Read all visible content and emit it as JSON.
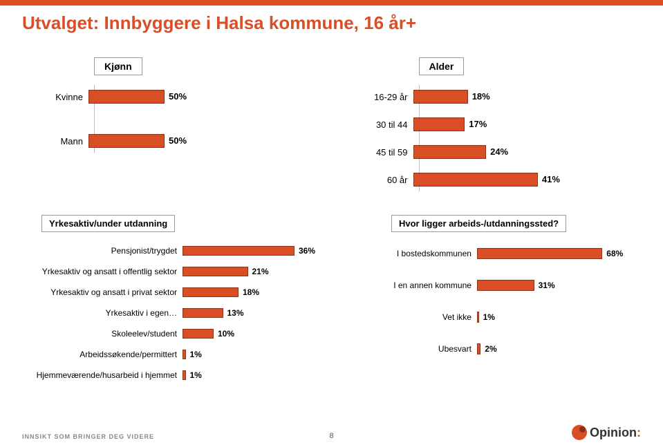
{
  "title": "Utvalget: Innbyggere i Halsa kommune, 16 år+",
  "colors": {
    "brand": "#da4e26",
    "bar_border": "#8f3218",
    "text": "#222222",
    "grid": "#bbbbbb",
    "bg": "#ffffff"
  },
  "kjonn": {
    "label": "Kjønn",
    "max": 100,
    "rows": [
      {
        "label": "Kvinne",
        "value": 50,
        "display": "50%"
      },
      {
        "label": "Mann",
        "value": 50,
        "display": "50%"
      }
    ]
  },
  "alder": {
    "label": "Alder",
    "max": 50,
    "rows": [
      {
        "label": "16-29 år",
        "value": 18,
        "display": "18%"
      },
      {
        "label": "30 til 44",
        "value": 17,
        "display": "17%"
      },
      {
        "label": "45 til 59",
        "value": 24,
        "display": "24%"
      },
      {
        "label": "60 år",
        "value": 41,
        "display": "41%"
      }
    ]
  },
  "yrke": {
    "label": "Yrkesaktiv/under utdanning",
    "max": 40,
    "rows": [
      {
        "label": "Pensjonist/trygdet",
        "value": 36,
        "display": "36%"
      },
      {
        "label": "Yrkesaktiv og ansatt i offentlig sektor",
        "value": 21,
        "display": "21%"
      },
      {
        "label": "Yrkesaktiv og ansatt i privat sektor",
        "value": 18,
        "display": "18%"
      },
      {
        "label": "Yrkesaktiv i egen…",
        "value": 13,
        "display": "13%"
      },
      {
        "label": "Skoleelev/student",
        "value": 10,
        "display": "10%"
      },
      {
        "label": "Arbeidssøkende/permittert",
        "value": 1,
        "display": "1%"
      },
      {
        "label": "Hjemmeværende/husarbeid i hjemmet",
        "value": 1,
        "display": "1%"
      }
    ]
  },
  "sted": {
    "label": "Hvor ligger arbeids-/utdanningssted?",
    "max": 75,
    "rows": [
      {
        "label": "I bostedskommunen",
        "value": 68,
        "display": "68%"
      },
      {
        "label": "I en annen kommune",
        "value": 31,
        "display": "31%"
      },
      {
        "label": "Vet ikke",
        "value": 1,
        "display": "1%"
      },
      {
        "label": "Ubesvart",
        "value": 2,
        "display": "2%"
      }
    ]
  },
  "footer": {
    "tagline": "INNSIKT SOM BRINGER DEG VIDERE",
    "page": "8",
    "logo": "Opinion"
  }
}
